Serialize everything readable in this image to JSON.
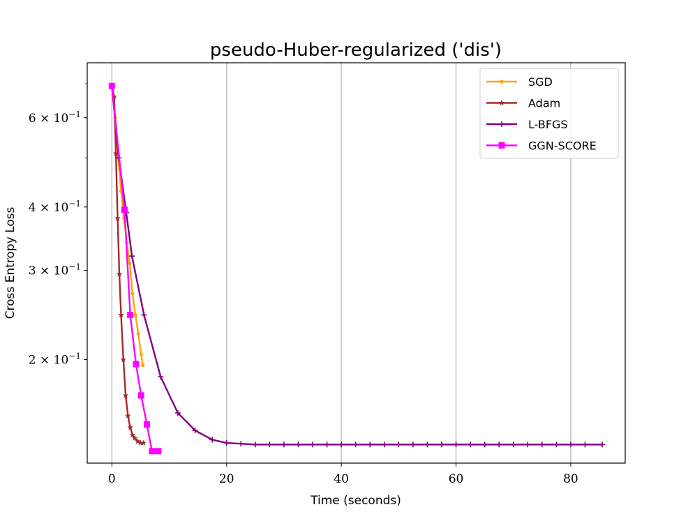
{
  "chart_data": {
    "type": "line",
    "title": "pseudo-Huber-regularized ('dis')",
    "xlabel": "Time (seconds)",
    "ylabel": "Cross Entropy Loss",
    "xlim": [
      -4.3,
      89.5
    ],
    "ylim": [
      0.125,
      0.77
    ],
    "yscale": "log",
    "grid": "x-major",
    "legend_position": "top-right",
    "x_ticks": [
      0,
      20,
      40,
      60,
      80
    ],
    "y_ticks": [
      {
        "value": 0.2,
        "mant": "2",
        "exp": "−1"
      },
      {
        "value": 0.3,
        "mant": "3",
        "exp": "−1"
      },
      {
        "value": 0.4,
        "mant": "4",
        "exp": "−1"
      },
      {
        "value": 0.6,
        "mant": "6",
        "exp": "−1"
      }
    ],
    "y_minor_ticks": [
      0.5,
      0.7
    ],
    "series": [
      {
        "name": "SGD",
        "color": "#ffa500",
        "marker": "dot",
        "x": [
          0,
          0.6,
          1.1,
          1.6,
          2.1,
          2.6,
          3.1,
          3.6,
          4.1,
          4.6,
          5.1,
          5.4
        ],
        "y": [
          0.693,
          0.6,
          0.5,
          0.43,
          0.38,
          0.34,
          0.31,
          0.27,
          0.245,
          0.225,
          0.205,
          0.195
        ]
      },
      {
        "name": "Adam",
        "color": "#a52a2a",
        "marker": "star",
        "x": [
          0,
          0.4,
          0.7,
          1.0,
          1.3,
          1.6,
          2.0,
          2.4,
          2.8,
          3.2,
          3.6,
          4.0,
          4.5,
          5.0,
          5.5
        ],
        "y": [
          0.693,
          0.66,
          0.51,
          0.38,
          0.295,
          0.245,
          0.2,
          0.17,
          0.155,
          0.147,
          0.142,
          0.14,
          0.138,
          0.137,
          0.137
        ]
      },
      {
        "name": "L-BFGS",
        "color": "#800080",
        "marker": "plus",
        "x": [
          0,
          1.2,
          2.5,
          3.5,
          5.6,
          8.5,
          11.5,
          14.5,
          17.5,
          20,
          22.5,
          25,
          27.5,
          30,
          32.5,
          35,
          37.5,
          40,
          42.5,
          45,
          47.5,
          50,
          52.5,
          55,
          57.5,
          60,
          62.5,
          65,
          67.5,
          70,
          72.5,
          75,
          77.5,
          80,
          82.5,
          85.5
        ],
        "y": [
          0.693,
          0.5,
          0.39,
          0.32,
          0.245,
          0.185,
          0.157,
          0.145,
          0.139,
          0.137,
          0.1365,
          0.136,
          0.136,
          0.136,
          0.136,
          0.136,
          0.136,
          0.136,
          0.136,
          0.136,
          0.136,
          0.136,
          0.136,
          0.136,
          0.136,
          0.136,
          0.136,
          0.136,
          0.136,
          0.136,
          0.136,
          0.136,
          0.136,
          0.136,
          0.136,
          0.136
        ]
      },
      {
        "name": "GGN-SCORE",
        "color": "#ff00ff",
        "marker": "square",
        "x": [
          0,
          2.2,
          3.2,
          4.2,
          5.1,
          6.1,
          7.0,
          8.1
        ],
        "y": [
          0.693,
          0.395,
          0.245,
          0.196,
          0.17,
          0.149,
          0.132,
          0.132
        ]
      }
    ]
  }
}
